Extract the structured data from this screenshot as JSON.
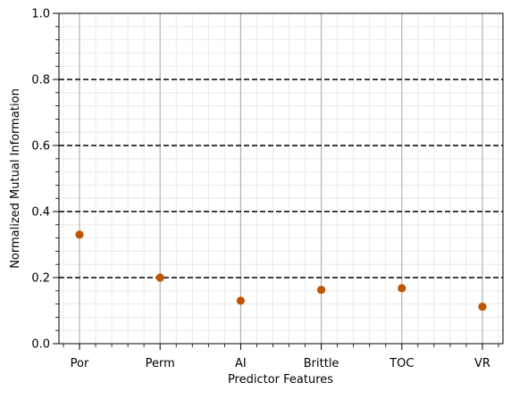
{
  "chart_data": {
    "type": "scatter",
    "categories": [
      "Por",
      "Perm",
      "AI",
      "Brittle",
      "TOC",
      "VR"
    ],
    "values": [
      0.33,
      0.2,
      0.13,
      0.163,
      0.168,
      0.112
    ],
    "xlabel": "Predictor Features",
    "ylabel": "Normalized Mutual Information",
    "ylim": [
      0.0,
      1.0
    ],
    "yticks": [
      0.0,
      0.2,
      0.4,
      0.6,
      0.8,
      1.0
    ],
    "ytick_labels": [
      "0.0",
      "0.2",
      "0.4",
      "0.6",
      "0.8",
      "1.0"
    ],
    "reference_lines": [
      0.2,
      0.4,
      0.6,
      0.8
    ],
    "grid": true,
    "legend": "none",
    "colors": {
      "marker": "#c05600",
      "reference_line": "#000000",
      "major_grid": "#b0b0b0",
      "minor_grid": "#e6e6e6",
      "axis": "#000000"
    }
  }
}
